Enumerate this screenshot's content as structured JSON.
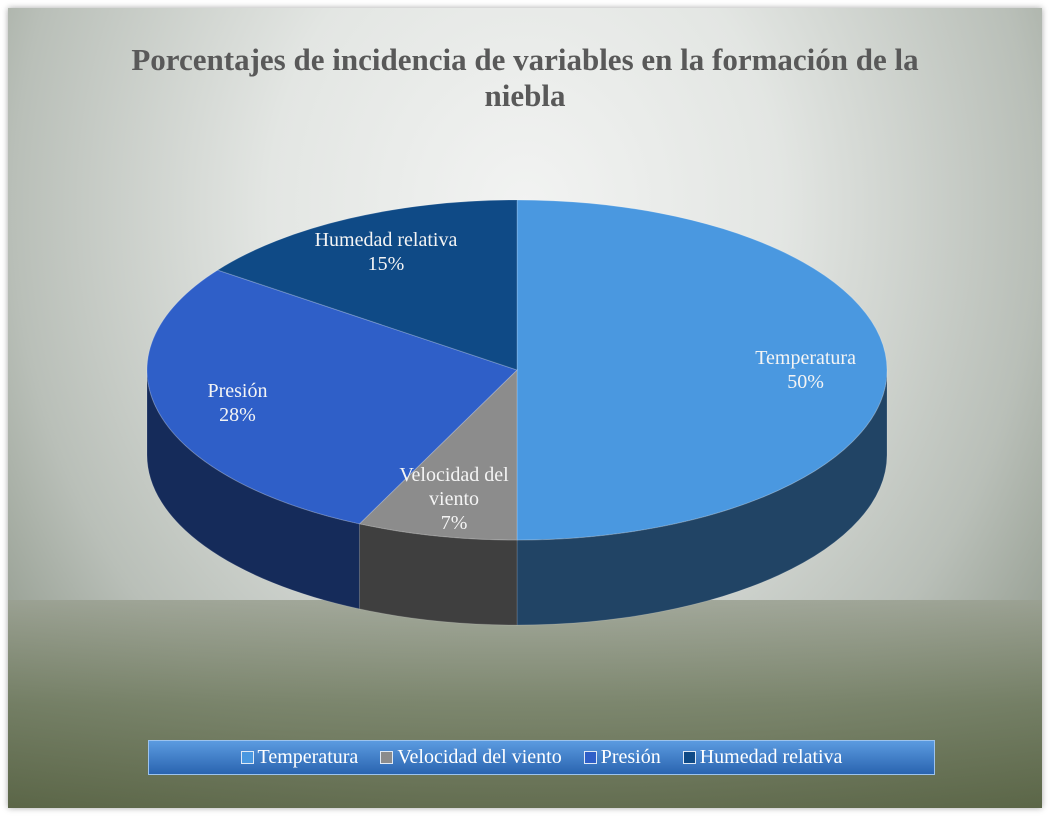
{
  "chart_data": {
    "type": "pie3d",
    "title": "Porcentajes de incidencia de variables en la formación de la niebla",
    "categories": [
      "Temperatura",
      "Velocidad del viento",
      "Presión",
      "Humedad relativa"
    ],
    "values": [
      50,
      7,
      28,
      15
    ],
    "value_labels": [
      "50%",
      "7%",
      "28%",
      "15%"
    ],
    "colors": [
      "#4a98e0",
      "#8c8c8c",
      "#2f5fc8",
      "#0f4a86"
    ],
    "legend": "bottom"
  }
}
